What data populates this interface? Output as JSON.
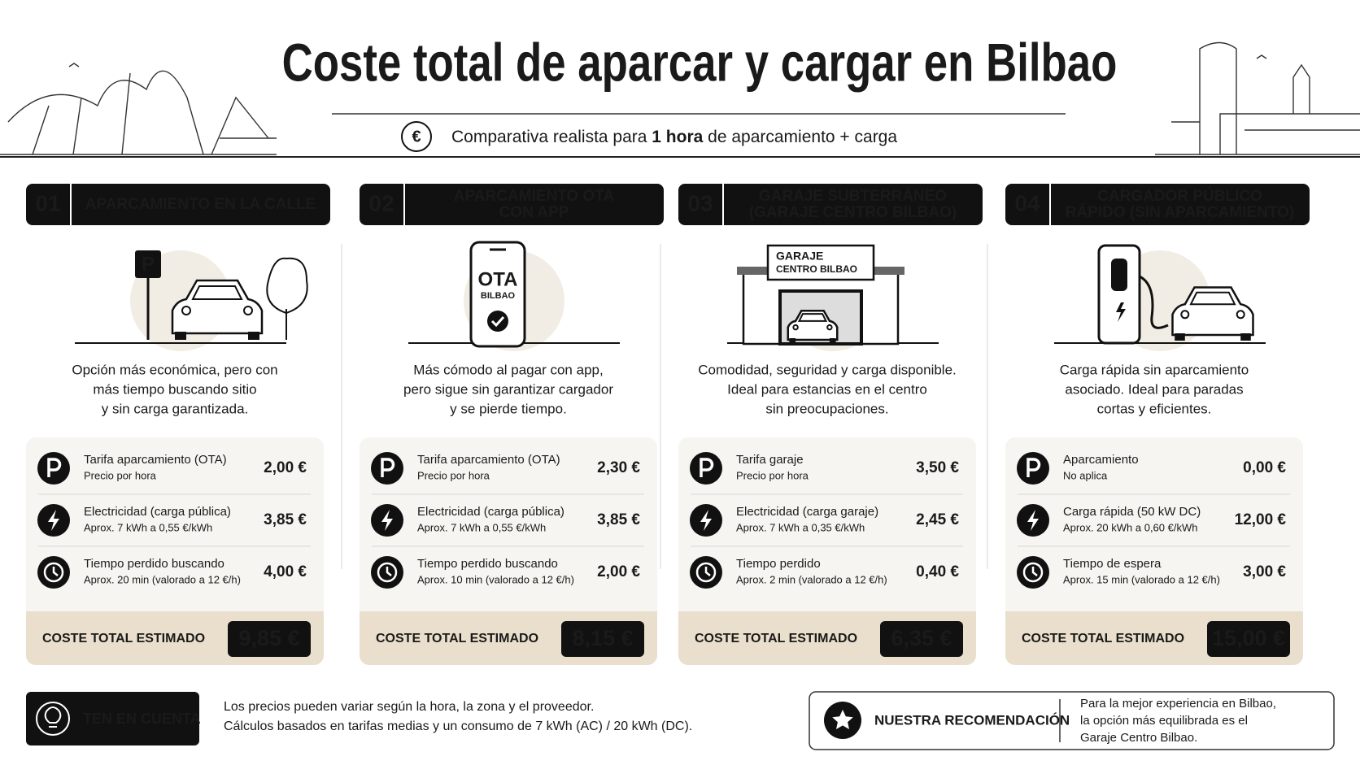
{
  "header": {
    "title": "Coste total de aparcar y cargar en Bilbao",
    "currency_icon": "€",
    "subtitle_prefix": "Comparativa realista para ",
    "subtitle_bold": "1 hora",
    "subtitle_suffix": " de aparcamiento + carga"
  },
  "cards": [
    {
      "number": "01",
      "title": [
        "APARCAMIENTO EN LA CALLE"
      ],
      "illustration_text": [
        "P"
      ],
      "description": [
        "Opción más económica, pero con",
        "más tiempo buscando sitio",
        "y sin carga garantizada."
      ],
      "rows": [
        {
          "label": "Tarifa aparcamiento (OTA)",
          "detail": "Precio por hora",
          "price": "2,00 €"
        },
        {
          "label": "Electricidad (carga pública)",
          "detail": "Aprox. 7 kWh a 0,55 €/kWh",
          "price": "3,85 €"
        },
        {
          "label": "Tiempo perdido buscando",
          "detail": "Aprox. 20 min (valorado a 12 €/h)",
          "price": "4,00 €"
        }
      ],
      "total_label": "COSTE TOTAL ESTIMADO",
      "total": "9,85 €"
    },
    {
      "number": "02",
      "title": [
        "APARCAMIENTO OTA",
        "CON APP"
      ],
      "illustration_text": [
        "OTA",
        "BILBAO"
      ],
      "description": [
        "Más cómodo al pagar con app,",
        "pero sigue sin garantizar cargador",
        "y se pierde tiempo."
      ],
      "rows": [
        {
          "label": "Tarifa aparcamiento (OTA)",
          "detail": "Precio por hora",
          "price": "2,30 €"
        },
        {
          "label": "Electricidad (carga pública)",
          "detail": "Aprox. 7 kWh a 0,55 €/kWh",
          "price": "3,85 €"
        },
        {
          "label": "Tiempo perdido buscando",
          "detail": "Aprox. 10 min (valorado a 12 €/h)",
          "price": "2,00 €"
        }
      ],
      "total_label": "COSTE TOTAL ESTIMADO",
      "total": "8,15 €"
    },
    {
      "number": "03",
      "title": [
        "GARAJE SUBTERRÁNEO",
        "(GARAJE CENTRO BILBAO)"
      ],
      "illustration_text": [
        "GARAJE",
        "CENTRO BILBAO"
      ],
      "description": [
        "Comodidad, seguridad y carga disponible.",
        "Ideal para estancias en el centro",
        "sin preocupaciones."
      ],
      "rows": [
        {
          "label": "Tarifa garaje",
          "detail": "Precio por hora",
          "price": "3,50 €"
        },
        {
          "label": "Electricidad (carga garaje)",
          "detail": "Aprox. 7 kWh a 0,35 €/kWh",
          "price": "2,45 €"
        },
        {
          "label": "Tiempo perdido",
          "detail": "Aprox. 2 min (valorado a 12 €/h)",
          "price": "0,40 €"
        }
      ],
      "total_label": "COSTE TOTAL ESTIMADO",
      "total": "6,35 €"
    },
    {
      "number": "04",
      "title": [
        "CARGADOR PÚBLICO",
        "RÁPIDO (SIN APARCAMIENTO)"
      ],
      "description": [
        "Carga rápida sin aparcamiento",
        "asociado. Ideal para paradas",
        "cortas y eficientes."
      ],
      "rows": [
        {
          "label": "Aparcamiento",
          "detail": "No aplica",
          "price": "0,00 €"
        },
        {
          "label": "Carga rápida (50 kW DC)",
          "detail": "Aprox. 20 kWh a 0,60 €/kWh",
          "price": "12,00 €"
        },
        {
          "label": "Tiempo de espera",
          "detail": "Aprox. 15 min (valorado a 12 €/h)",
          "price": "3,00 €"
        }
      ],
      "total_label": "COSTE TOTAL ESTIMADO",
      "total": "15,00 €"
    }
  ],
  "footer": {
    "note": {
      "title": "TEN EN CUENTA",
      "lines": [
        "Los precios pueden variar según la hora, la zona y el proveedor.",
        "Cálculos basados en tarifas medias y un consumo de 7 kWh (AC) / 20 kWh (DC)."
      ]
    },
    "recommendation": {
      "title": "NUESTRA RECOMENDACIÓN",
      "lines": [
        "Para la mejor experiencia en Bilbao,",
        "la opción más equilibrada es el",
        "Garaje Centro Bilbao."
      ]
    }
  }
}
